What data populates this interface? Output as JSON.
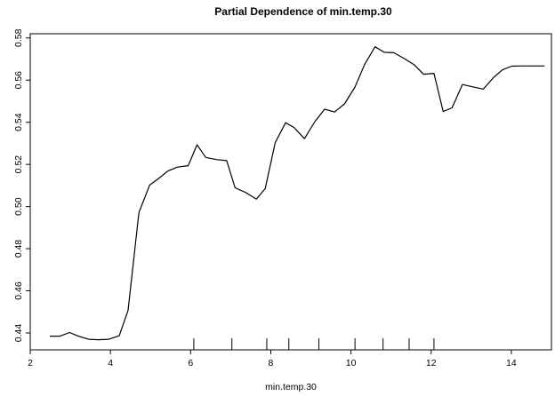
{
  "chart_data": {
    "type": "line",
    "title": "Partial Dependence of min.temp.30",
    "xlabel": "min.temp.30",
    "ylabel": "",
    "xlim": [
      2,
      15
    ],
    "ylim": [
      0.432,
      0.582
    ],
    "xticks": [
      2,
      4,
      6,
      8,
      10,
      12,
      14
    ],
    "xtick_labels": [
      "2",
      "4",
      "6",
      "8",
      "10",
      "12",
      "14"
    ],
    "yticks": [
      0.44,
      0.46,
      0.48,
      0.5,
      0.52,
      0.54,
      0.56,
      0.58
    ],
    "ytick_labels": [
      "0.44",
      "0.46",
      "0.48",
      "0.50",
      "0.52",
      "0.54",
      "0.56",
      "0.58"
    ],
    "grid": false,
    "rug": [
      6.08,
      7.03,
      7.9,
      8.45,
      9.2,
      10.1,
      10.8,
      11.45,
      12.07
    ],
    "series": [
      {
        "x": [
          2.49,
          2.74,
          2.98,
          3.2,
          3.46,
          3.69,
          3.96,
          4.22,
          4.44,
          4.71,
          4.98,
          5.19,
          5.43,
          5.67,
          5.94,
          6.16,
          6.38,
          6.64,
          6.9,
          7.11,
          7.37,
          7.64,
          7.86,
          8.11,
          8.37,
          8.58,
          8.84,
          9.1,
          9.34,
          9.59,
          9.84,
          10.1,
          10.34,
          10.6,
          10.83,
          11.07,
          11.33,
          11.57,
          11.81,
          12.07,
          12.3,
          12.52,
          12.78,
          13.04,
          13.3,
          13.55,
          13.78,
          14.01,
          14.25,
          14.49,
          14.83
        ],
        "y": [
          0.4385,
          0.4385,
          0.4402,
          0.4385,
          0.437,
          0.4368,
          0.437,
          0.4387,
          0.4508,
          0.4972,
          0.5102,
          0.5131,
          0.5168,
          0.5187,
          0.5194,
          0.5293,
          0.5233,
          0.5223,
          0.5218,
          0.5089,
          0.5067,
          0.5035,
          0.5085,
          0.5303,
          0.5398,
          0.5375,
          0.5322,
          0.5403,
          0.5462,
          0.5449,
          0.5487,
          0.5567,
          0.5674,
          0.5758,
          0.5732,
          0.573,
          0.5702,
          0.5674,
          0.5628,
          0.5632,
          0.5451,
          0.5468,
          0.5579,
          0.5568,
          0.5557,
          0.5611,
          0.5649,
          0.5666,
          0.5667,
          0.5667,
          0.5667
        ]
      }
    ]
  }
}
